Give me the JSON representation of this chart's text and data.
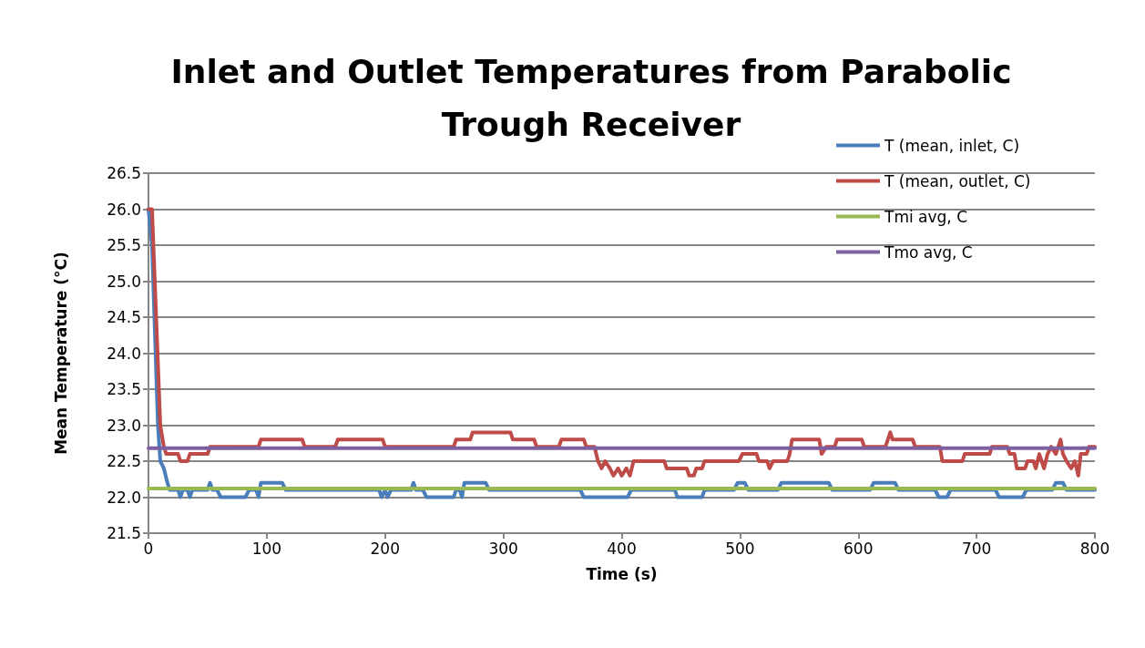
{
  "chart_data": {
    "type": "line",
    "title": "Inlet and Outlet Temperatures from Parabolic\nTrough Receiver",
    "xlabel": "Time (s)",
    "ylabel": "Mean Temperature (°C)",
    "xlim": [
      0,
      800
    ],
    "xticks": [
      0,
      100,
      200,
      300,
      400,
      500,
      600,
      700,
      800
    ],
    "ylim": [
      21.5,
      26.5
    ],
    "yticks": [
      21.5,
      {
        "value": 22,
        "label": "22.0"
      },
      22.5,
      {
        "value": 23,
        "label": "23.0"
      },
      23.5,
      {
        "value": 24,
        "label": "24.0"
      },
      24.5,
      {
        "value": 25,
        "label": "25.0"
      },
      25.5,
      {
        "value": 26,
        "label": "26.0"
      },
      26.5
    ],
    "grid": "y",
    "legend": "top right",
    "marker": "none",
    "line_style": "solid",
    "series": [
      {
        "name": "T (mean, inlet, C)",
        "color": "#4a7ebb",
        "x": [
          0,
          3,
          8,
          10,
          13,
          16,
          18,
          25,
          27,
          29,
          33,
          35,
          37,
          50,
          52,
          54,
          58,
          61,
          82,
          85,
          91,
          93,
          95,
          113,
          116,
          195,
          197,
          200,
          202,
          205,
          222,
          224,
          226,
          232,
          235,
          258,
          260,
          263,
          265,
          267,
          285,
          288,
          365,
          368,
          405,
          408,
          445,
          447,
          468,
          470,
          495,
          498,
          504,
          507,
          532,
          535,
          575,
          578,
          610,
          613,
          631,
          634,
          665,
          668,
          675,
          678,
          716,
          719,
          739,
          742,
          764,
          767,
          773,
          776,
          800
        ],
        "values": [
          26.0,
          25.5,
          23.0,
          22.5,
          22.4,
          22.2,
          22.1,
          22.1,
          22.0,
          22.1,
          22.1,
          22.0,
          22.1,
          22.1,
          22.2,
          22.1,
          22.1,
          22.0,
          22.0,
          22.1,
          22.1,
          22.0,
          22.2,
          22.2,
          22.1,
          22.1,
          22.0,
          22.1,
          22.0,
          22.1,
          22.1,
          22.2,
          22.1,
          22.1,
          22.0,
          22.0,
          22.1,
          22.1,
          22.0,
          22.2,
          22.2,
          22.1,
          22.1,
          22.0,
          22.0,
          22.1,
          22.1,
          22.0,
          22.0,
          22.1,
          22.1,
          22.2,
          22.2,
          22.1,
          22.1,
          22.2,
          22.2,
          22.1,
          22.1,
          22.2,
          22.2,
          22.1,
          22.1,
          22.0,
          22.0,
          22.1,
          22.1,
          22.0,
          22.0,
          22.1,
          22.1,
          22.2,
          22.2,
          22.1,
          22.1
        ]
      },
      {
        "name": "T (mean, outlet, C)",
        "color": "#be4b48",
        "x": [
          0,
          3,
          10,
          13,
          15,
          25,
          27,
          33,
          35,
          50,
          52,
          93,
          95,
          130,
          132,
          158,
          160,
          198,
          200,
          258,
          260,
          272,
          274,
          306,
          308,
          326,
          328,
          347,
          349,
          368,
          370,
          377,
          380,
          383,
          386,
          390,
          393,
          397,
          400,
          404,
          407,
          410,
          413,
          436,
          438,
          455,
          457,
          461,
          463,
          468,
          470,
          499,
          502,
          514,
          516,
          523,
          525,
          528,
          530,
          540,
          542,
          544,
          567,
          569,
          573,
          580,
          582,
          603,
          605,
          623,
          625,
          627,
          629,
          646,
          648,
          669,
          671,
          688,
          690,
          711,
          713,
          726,
          728,
          732,
          734,
          741,
          743,
          748,
          750,
          753,
          757,
          760,
          763,
          767,
          771,
          773,
          776,
          780,
          783,
          786,
          788,
          793,
          795,
          800
        ],
        "values": [
          26.0,
          26.0,
          23.0,
          22.7,
          22.6,
          22.6,
          22.5,
          22.5,
          22.6,
          22.6,
          22.7,
          22.7,
          22.8,
          22.8,
          22.7,
          22.7,
          22.8,
          22.8,
          22.7,
          22.7,
          22.8,
          22.8,
          22.9,
          22.9,
          22.8,
          22.8,
          22.7,
          22.7,
          22.8,
          22.8,
          22.7,
          22.7,
          22.5,
          22.4,
          22.5,
          22.4,
          22.3,
          22.4,
          22.3,
          22.4,
          22.3,
          22.5,
          22.5,
          22.5,
          22.4,
          22.4,
          22.3,
          22.3,
          22.4,
          22.4,
          22.5,
          22.5,
          22.6,
          22.6,
          22.5,
          22.5,
          22.4,
          22.5,
          22.5,
          22.5,
          22.6,
          22.8,
          22.8,
          22.6,
          22.7,
          22.7,
          22.8,
          22.8,
          22.7,
          22.7,
          22.8,
          22.9,
          22.8,
          22.8,
          22.7,
          22.7,
          22.5,
          22.5,
          22.6,
          22.6,
          22.7,
          22.7,
          22.6,
          22.6,
          22.4,
          22.4,
          22.5,
          22.5,
          22.4,
          22.6,
          22.4,
          22.6,
          22.7,
          22.6,
          22.8,
          22.6,
          22.5,
          22.4,
          22.5,
          22.3,
          22.6,
          22.6,
          22.7,
          22.7
        ]
      },
      {
        "name": "Tmi avg, C",
        "color": "#98b954",
        "x": [
          0,
          800
        ],
        "values": [
          22.12,
          22.12
        ]
      },
      {
        "name": "Tmo avg, C",
        "color": "#7d60a0",
        "x": [
          0,
          800
        ],
        "values": [
          22.68,
          22.68
        ]
      }
    ]
  }
}
